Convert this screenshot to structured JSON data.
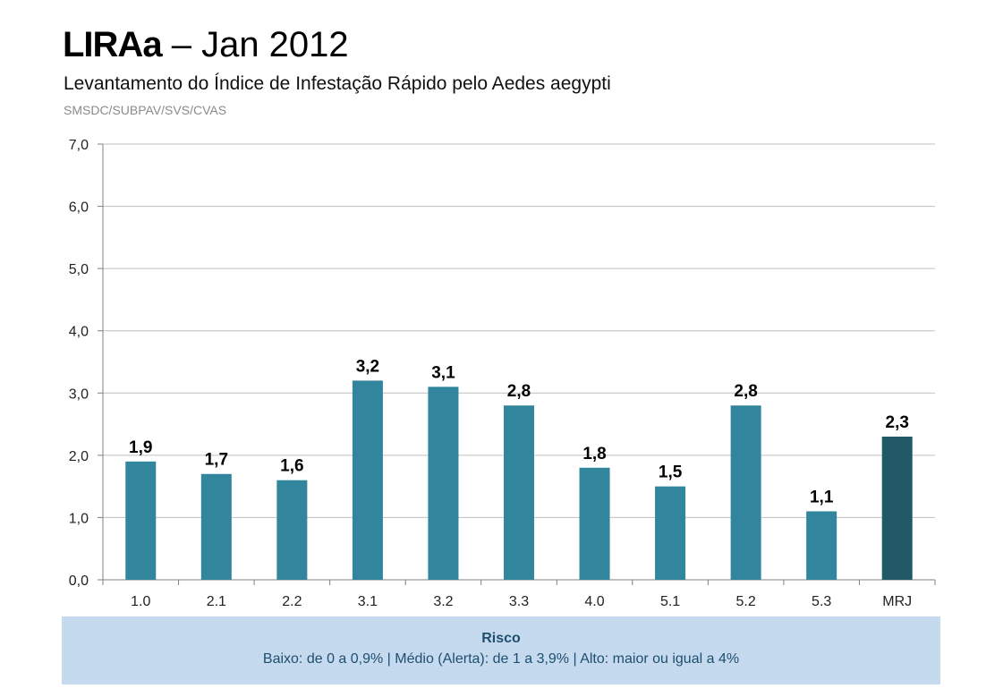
{
  "header": {
    "title_strong": "LIRAa",
    "title_sep": "–",
    "title_date": "Jan 2012",
    "subtitle": "Levantamento do Índice de Infestação Rápido pelo Aedes aegypti",
    "source": "SMSDC/SUBPAV/SVS/CVAS"
  },
  "chart_data": {
    "type": "bar",
    "categories": [
      "1.0",
      "2.1",
      "2.2",
      "3.1",
      "3.2",
      "3.3",
      "4.0",
      "5.1",
      "5.2",
      "5.3",
      "MRJ"
    ],
    "values": [
      1.9,
      1.7,
      1.6,
      3.2,
      3.1,
      2.8,
      1.8,
      1.5,
      2.8,
      1.1,
      2.3
    ],
    "value_labels": [
      "1,9",
      "1,7",
      "1,6",
      "3,2",
      "3,1",
      "2,8",
      "1,8",
      "1,5",
      "2,8",
      "1,1",
      "2,3"
    ],
    "yticks": [
      "0,0",
      "1,0",
      "2,0",
      "3,0",
      "4,0",
      "5,0",
      "6,0",
      "7,0"
    ],
    "ylim": [
      0,
      7
    ],
    "grid": true,
    "colors": {
      "bar": "#31859c",
      "highlight_bar": "#215968",
      "grid": "#bfbfbf",
      "axis": "#808080"
    },
    "highlight_category": "MRJ"
  },
  "legend": {
    "title": "Risco",
    "text": "Baixo: de 0 a 0,9% | Médio (Alerta): de 1 a 3,9% | Alto: maior ou igual a 4%"
  }
}
